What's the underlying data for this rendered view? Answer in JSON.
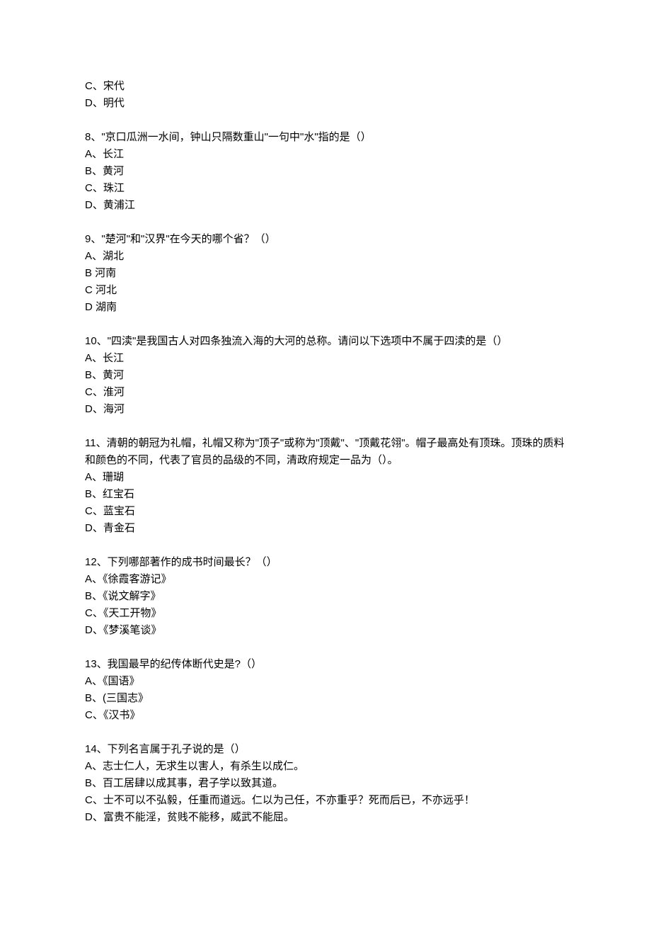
{
  "text_color": "#000000",
  "bg_color": "#ffffff",
  "font_size": 15,
  "questions": [
    {
      "stem": null,
      "options": [
        "C、宋代",
        "D、明代"
      ]
    },
    {
      "stem": "8、\"京口瓜洲一水间，钟山只隔数重山\"一句中\"水\"指的是（）",
      "options": [
        "A、长江",
        "B、黄河",
        "C、珠江",
        "D、黄浦江"
      ]
    },
    {
      "stem": "9、\"楚河\"和\"汉界\"在今天的哪个省？（）",
      "options": [
        "A、湖北",
        "B 河南",
        "C 河北",
        "D 湖南"
      ]
    },
    {
      "stem": "10、\"四渎\"是我国古人对四条独流入海的大河的总称。请问以下选项中不属于四渎的是（）",
      "options": [
        "A、长江",
        "B、黄河",
        "C、淮河",
        "D、海河"
      ]
    },
    {
      "stem": "11、清朝的朝冠为礼帽，礼帽又称为\"顶子\"或称为\"顶戴\"、\"顶戴花翎\"。帽子最高处有顶珠。顶珠的质料和颜色的不同，代表了官员的品级的不同，清政府规定一品为（）。",
      "options": [
        "A、珊瑚",
        "B、红宝石",
        "C、蓝宝石",
        "D、青金石"
      ]
    },
    {
      "stem": "12、下列哪部著作的成书时间最长？（）",
      "options": [
        "A、《徐霞客游记》",
        "B、《说文解字》",
        "C、《天工开物》",
        "D、《梦溪笔谈》"
      ]
    },
    {
      "stem": "13、我国最早的纪传体断代史是?（）",
      "options": [
        "A、《国语》",
        "B、(三国志》",
        "C、《汉书》"
      ]
    },
    {
      "stem": "14、下列名言属于孔子说的是（）",
      "options": [
        "A、志士仁人，无求生以害人，有杀生以成仁。",
        "B、百工居肆以成其事，君子学以致其道。",
        "C、士不可以不弘毅，任重而道远。仁以为己任，不亦重乎？死而后已，不亦远乎！",
        "D、富贵不能淫，贫贱不能移，威武不能屈。"
      ]
    }
  ]
}
